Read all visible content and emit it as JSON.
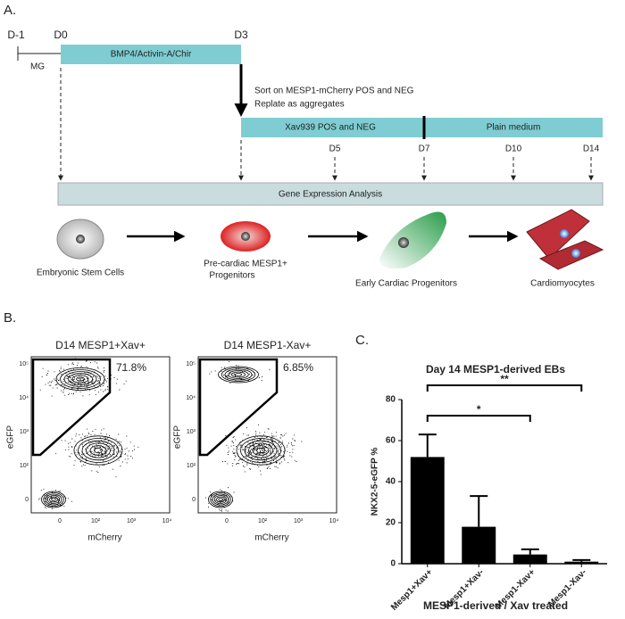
{
  "panel_a": {
    "label": "A.",
    "timeline": {
      "d_minus1": "D-1",
      "d0": "D0",
      "d3": "D3",
      "mg": "MG",
      "induction": "BMP4/Activin-A/Chir",
      "sort_line1": "Sort on MESP1-mCherry POS and NEG",
      "sort_line2": "Replate as aggregates",
      "xav": "Xav939 POS and NEG",
      "plain": "Plain medium",
      "d5": "D5",
      "d7": "D7",
      "d10": "D10",
      "d14": "D14",
      "analysis": "Gene Expression Analysis"
    },
    "cells": {
      "esc": "Embryonic Stem Cells",
      "precardiac_1": "Pre-cardiac MESP1+",
      "precardiac_2": "Progenitors",
      "early": "Early Cardiac Progenitors",
      "cm": "Cardiomyocytes"
    }
  },
  "panel_b": {
    "label": "B.",
    "plots": [
      {
        "title": "D14 MESP1+Xav+",
        "gate": "71.8%"
      },
      {
        "title": "D14 MESP1-Xav+",
        "gate": "6.85%"
      }
    ],
    "y_label": "eGFP",
    "x_label": "mCherry",
    "y_ticks": [
      "10⁵",
      "10⁴",
      "10³",
      "10²",
      "0"
    ],
    "x_ticks": [
      "0",
      "10²",
      "10³",
      "10⁴"
    ]
  },
  "panel_c": {
    "label": "C."
  },
  "chart_data": {
    "type": "bar",
    "title": "Day 14 MESP1-derived EBs",
    "y_label": "NKX2-5-eGFP %",
    "x_label": "MESP1-derived / Xav treated",
    "categories": [
      "Mesp1+Xav+",
      "Mesp1+Xav-",
      "Mesp1-Xav+",
      "Mesp1-Xav-"
    ],
    "values": [
      52,
      18,
      4.5,
      1
    ],
    "errors": [
      11,
      15,
      2.5,
      0.8
    ],
    "color": "#000000",
    "ylim": [
      0,
      80
    ],
    "yticks": [
      0,
      20,
      40,
      60,
      80
    ],
    "annotations": [
      "*",
      "**"
    ]
  }
}
